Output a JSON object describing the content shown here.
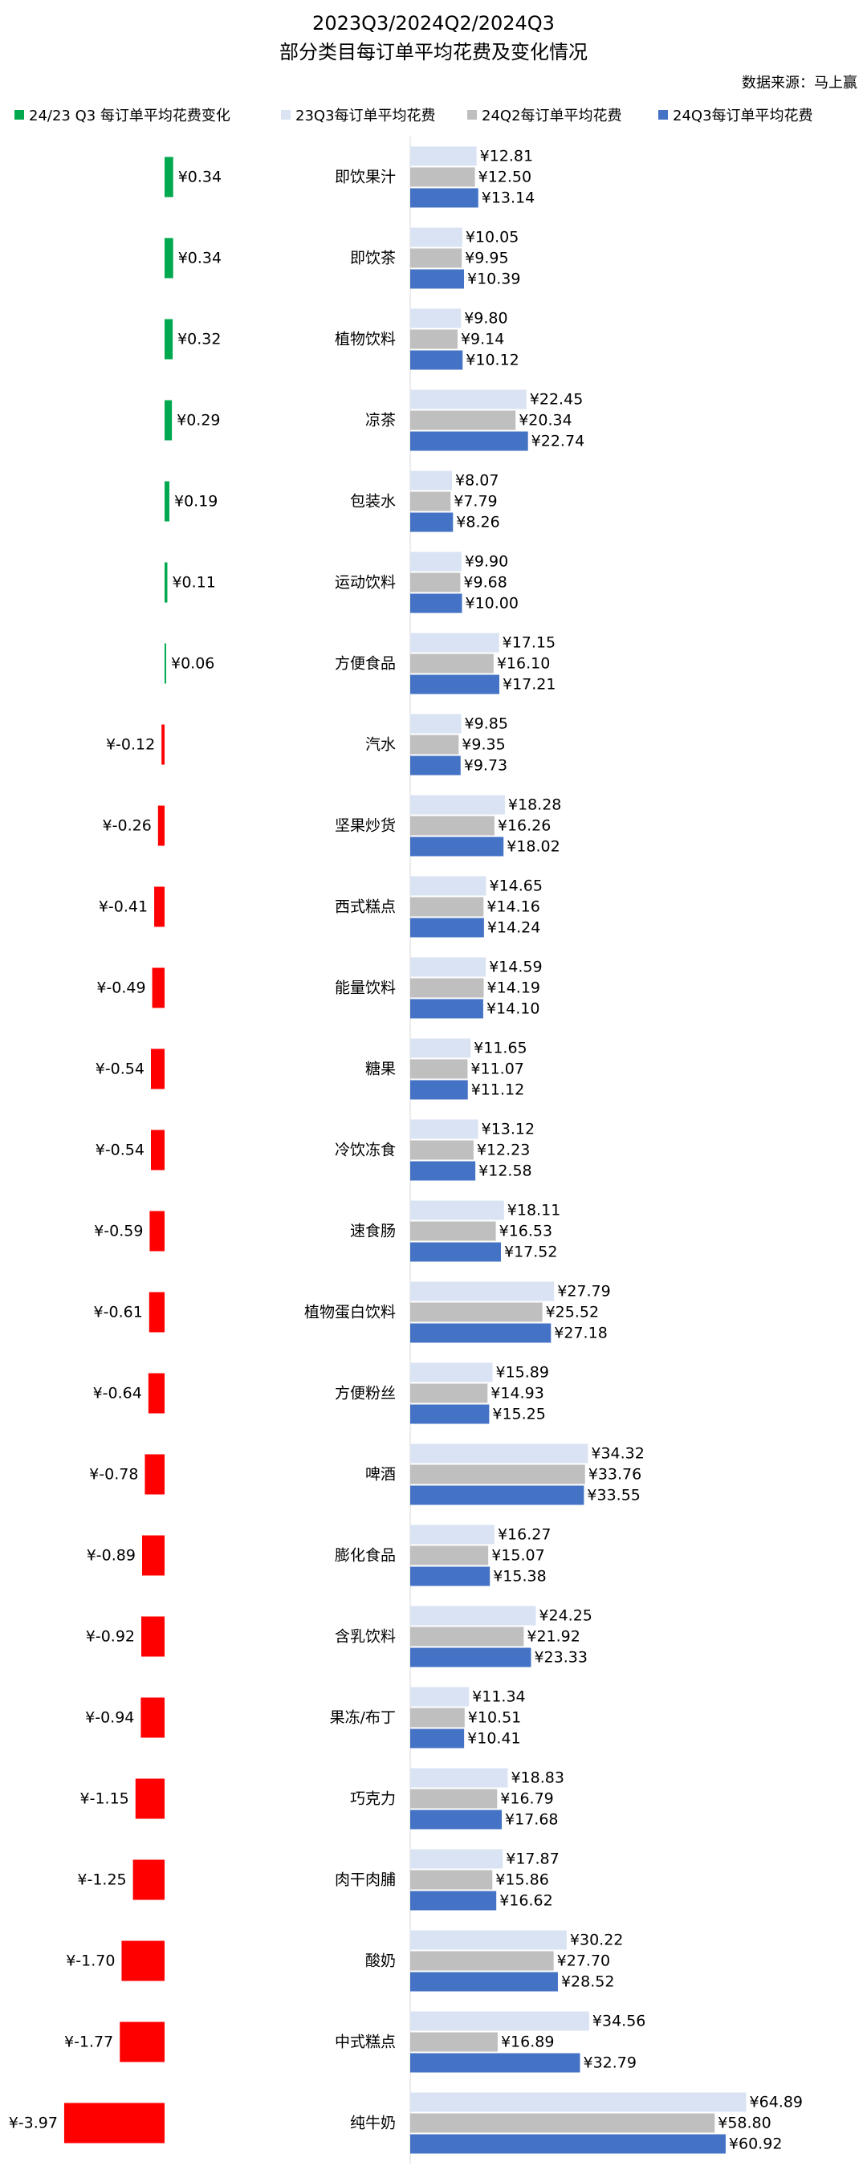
{
  "title": "2023Q3/2024Q2/2024Q3",
  "subtitle": "部分类目每订单平均花费及变化情况",
  "source": "数据来源：马上赢",
  "colors": {
    "change_positive": "#00a94f",
    "change_negative": "#ff0000",
    "q3_2023": "#dae3f3",
    "q2_2024": "#bfbfbf",
    "q3_2024": "#4472c4"
  },
  "legend": [
    {
      "label": "24/23 Q3 每订单平均花费变化",
      "color": "#00a94f"
    },
    {
      "label": "23Q3每订单平均花费",
      "color": "#dae3f3"
    },
    {
      "label": "24Q2每订单平均花费",
      "color": "#bfbfbf"
    },
    {
      "label": "24Q3每订单平均花费",
      "color": "#4472c4"
    }
  ],
  "chart_data": {
    "type": "bar",
    "orientation": "horizontal",
    "currency_prefix": "¥",
    "categories": [
      "即饮果汁",
      "即饮茶",
      "植物饮料",
      "凉茶",
      "包装水",
      "运动饮料",
      "方便食品",
      "汽水",
      "坚果炒货",
      "西式糕点",
      "能量饮料",
      "糖果",
      "冷饮冻食",
      "速食肠",
      "植物蛋白饮料",
      "方便粉丝",
      "啤酒",
      "膨化食品",
      "含乳饮料",
      "果冻/布丁",
      "巧克力",
      "肉干肉脯",
      "酸奶",
      "中式糕点",
      "纯牛奶"
    ],
    "change": {
      "name": "24/23 Q3 每订单平均花费变化",
      "values": [
        0.34,
        0.34,
        0.32,
        0.29,
        0.19,
        0.11,
        0.06,
        -0.12,
        -0.26,
        -0.41,
        -0.49,
        -0.54,
        -0.54,
        -0.59,
        -0.61,
        -0.64,
        -0.78,
        -0.89,
        -0.92,
        -0.94,
        -1.15,
        -1.25,
        -1.7,
        -1.77,
        -3.97
      ]
    },
    "series": [
      {
        "name": "23Q3每订单平均花费",
        "values": [
          12.81,
          10.05,
          9.8,
          22.45,
          8.07,
          9.9,
          17.15,
          9.85,
          18.28,
          14.65,
          14.59,
          11.65,
          13.12,
          18.11,
          27.79,
          15.89,
          34.32,
          16.27,
          24.25,
          11.34,
          18.83,
          17.87,
          30.22,
          34.56,
          64.89
        ]
      },
      {
        "name": "24Q2每订单平均花费",
        "values": [
          12.5,
          9.95,
          9.14,
          20.34,
          7.79,
          9.68,
          16.1,
          9.35,
          16.26,
          14.16,
          14.19,
          11.07,
          12.23,
          16.53,
          25.52,
          14.93,
          33.76,
          15.07,
          21.92,
          10.51,
          16.79,
          15.86,
          27.7,
          16.89,
          58.8
        ]
      },
      {
        "name": "24Q3每订单平均花费",
        "values": [
          13.14,
          10.39,
          10.12,
          22.74,
          8.26,
          10.0,
          17.21,
          9.73,
          18.02,
          14.24,
          14.1,
          11.12,
          12.58,
          17.52,
          27.18,
          15.25,
          33.55,
          15.38,
          23.33,
          10.41,
          17.68,
          16.62,
          28.52,
          32.79,
          60.92
        ]
      }
    ]
  }
}
